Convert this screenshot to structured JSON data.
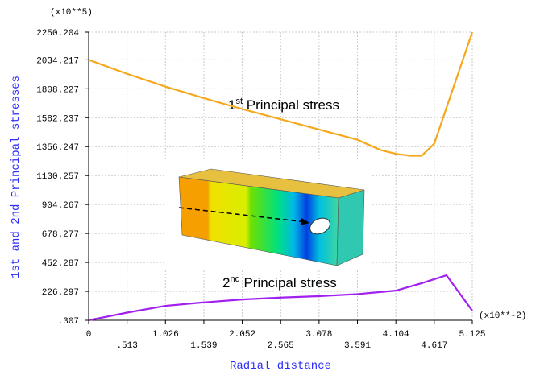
{
  "chart_data": {
    "type": "line",
    "y_label": "1st and 2nd Principal stresses",
    "x_label": "Radial distance",
    "y_scale_label": "(x10**5)",
    "x_scale_label": "(x10**-2)",
    "annotations": [
      {
        "base": "1",
        "sup": "st",
        "text": " Principal stress"
      },
      {
        "base": "2",
        "sup": "nd",
        "text": " Principal stress"
      }
    ],
    "xlim": [
      0,
      5.125
    ],
    "ylim": [
      0.307,
      2250.204
    ],
    "xticks": [
      0,
      {
        "value": 0.513,
        "label": ".513"
      },
      1.026,
      1.539,
      2.052,
      2.565,
      3.078,
      3.591,
      4.104,
      4.617,
      5.125
    ],
    "yticks": [
      {
        "value": 0.307,
        "label": ".307"
      },
      226.297,
      452.287,
      678.277,
      904.267,
      1130.257,
      1356.247,
      1582.237,
      1808.227,
      2034.217,
      2250.204
    ],
    "grid": true,
    "series": [
      {
        "color": "#f5a81c",
        "x": [
          0,
          0.513,
          1.026,
          1.539,
          2.052,
          2.565,
          3.078,
          3.591,
          3.9,
          4.104,
          4.3,
          4.45,
          4.617,
          5.125
        ],
        "values": [
          2034,
          1925,
          1825,
          1735,
          1650,
          1570,
          1490,
          1410,
          1330,
          1300,
          1285,
          1285,
          1380,
          2250
        ]
      },
      {
        "color": "#a020f0",
        "x": [
          0,
          0.513,
          1.026,
          1.539,
          2.052,
          2.565,
          3.078,
          3.591,
          4.104,
          4.45,
          4.78,
          5.125
        ],
        "values": [
          0.307,
          60,
          113,
          140,
          163,
          178,
          189,
          205,
          232,
          290,
          352,
          75
        ]
      }
    ]
  }
}
